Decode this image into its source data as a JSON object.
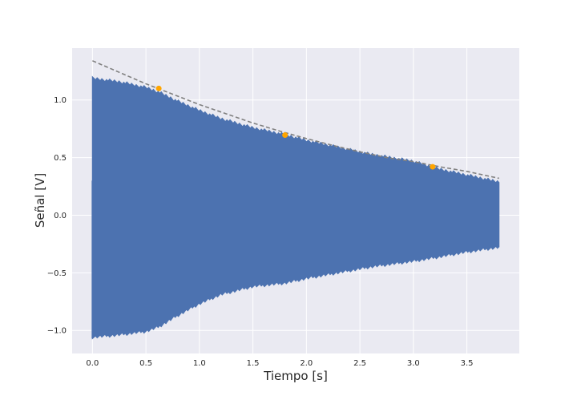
{
  "chart_data": {
    "type": "line",
    "title": "",
    "xlabel": "Tiempo [s]",
    "ylabel": "Señal [V]",
    "xlim": [
      -0.19,
      3.99
    ],
    "ylim": [
      -1.2,
      1.45
    ],
    "xticks": [
      0.0,
      0.5,
      1.0,
      1.5,
      2.0,
      2.5,
      3.0,
      3.5
    ],
    "xtick_labels": [
      "0.0",
      "0.5",
      "1.0",
      "1.5",
      "2.0",
      "2.5",
      "3.0",
      "3.5"
    ],
    "yticks": [
      -1.0,
      -0.5,
      0.0,
      0.5,
      1.0
    ],
    "ytick_labels": [
      "−1.0",
      "−0.5",
      "0.0",
      "0.5",
      "1.0"
    ],
    "grid": true,
    "background": "#eaeaf2",
    "series": [
      {
        "kind": "oscillation_envelope",
        "color": "#4c72b0",
        "x_start": 0.0,
        "x_end": 3.8,
        "upper_envelope": {
          "x": [
            0.0,
            0.25,
            0.5,
            0.62,
            0.8,
            1.0,
            1.2,
            1.5,
            1.8,
            2.0,
            2.3,
            2.6,
            3.0,
            3.2,
            3.5,
            3.8
          ],
          "y": [
            1.2,
            1.17,
            1.12,
            1.08,
            1.0,
            0.92,
            0.85,
            0.77,
            0.71,
            0.66,
            0.6,
            0.54,
            0.48,
            0.42,
            0.36,
            0.3
          ]
        },
        "lower_envelope": {
          "x": [
            0.0,
            0.25,
            0.5,
            0.62,
            0.8,
            1.0,
            1.2,
            1.5,
            1.8,
            2.0,
            2.3,
            2.6,
            3.0,
            3.2,
            3.5,
            3.8
          ],
          "y": [
            -1.07,
            -1.05,
            -1.02,
            -0.98,
            -0.88,
            -0.78,
            -0.7,
            -0.63,
            -0.6,
            -0.56,
            -0.51,
            -0.46,
            -0.41,
            -0.38,
            -0.33,
            -0.29
          ]
        }
      },
      {
        "kind": "decay_fit",
        "color": "#808080",
        "dashed": true,
        "x": [
          0.0,
          0.25,
          0.5,
          0.75,
          1.0,
          1.25,
          1.5,
          1.75,
          2.0,
          2.25,
          2.5,
          2.75,
          3.0,
          3.25,
          3.5,
          3.8
        ],
        "y": [
          1.34,
          1.24,
          1.14,
          1.05,
          0.96,
          0.88,
          0.8,
          0.73,
          0.665,
          0.605,
          0.55,
          0.5,
          0.465,
          0.42,
          0.38,
          0.32
        ]
      },
      {
        "kind": "peaks",
        "color": "#ffa500",
        "x": [
          0.62,
          1.8,
          3.18
        ],
        "y": [
          1.1,
          0.695,
          0.42
        ]
      }
    ]
  }
}
